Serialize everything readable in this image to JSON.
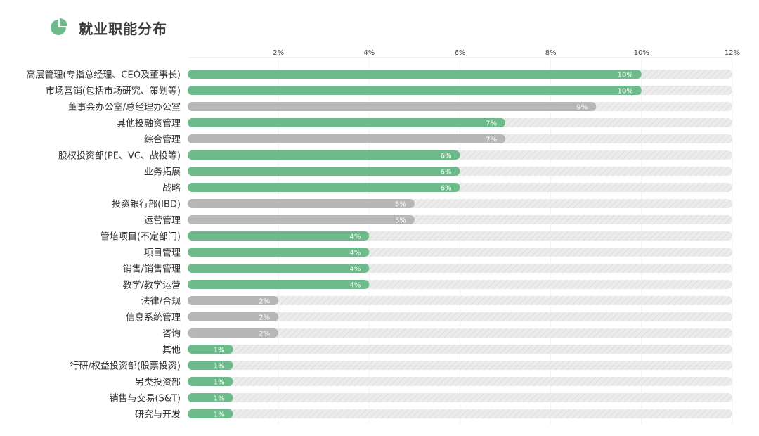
{
  "title": "就业职能分布",
  "icon": "pie-chart-icon",
  "colors": {
    "green": "#6dbb8a",
    "gray": "#b9b6b6",
    "track": "#ececec",
    "hatch": "#dddddd"
  },
  "chart_data": {
    "type": "bar",
    "orientation": "horizontal",
    "title": "",
    "xlabel": "",
    "ylabel": "",
    "xlim": [
      0,
      12
    ],
    "ticks": [
      "2%",
      "4%",
      "6%",
      "8%",
      "10%",
      "12%"
    ],
    "tick_values": [
      2,
      4,
      6,
      8,
      10,
      12
    ],
    "categories": [
      "高层管理(专指总经理、CEO及董事长)",
      "市场营销(包括市场研究、策划等)",
      "董事会办公室/总经理办公室",
      "其他投融资管理",
      "综合管理",
      "股权投资部(PE、VC、战投等)",
      "业务拓展",
      "战略",
      "投资银行部(IBD)",
      "运营管理",
      "管培项目(不定部门)",
      "项目管理",
      "销售/销售管理",
      "教学/教学运营",
      "法律/合规",
      "信息系统管理",
      "咨询",
      "其他",
      "行研/权益投资部(股票投资)",
      "另类投资部",
      "销售与交易(S&T)",
      "研究与开发"
    ],
    "values": [
      10,
      10,
      9,
      7,
      7,
      6,
      6,
      6,
      5,
      5,
      4,
      4,
      4,
      4,
      2,
      2,
      2,
      1,
      1,
      1,
      1,
      1
    ],
    "value_labels": [
      "10%",
      "10%",
      "9%",
      "7%",
      "7%",
      "6%",
      "6%",
      "6%",
      "5%",
      "5%",
      "4%",
      "4%",
      "4%",
      "4%",
      "2%",
      "2%",
      "2%",
      "1%",
      "1%",
      "1%",
      "1%",
      "1%"
    ],
    "bar_color": [
      "green",
      "green",
      "gray",
      "green",
      "gray",
      "green",
      "green",
      "green",
      "gray",
      "gray",
      "green",
      "green",
      "green",
      "green",
      "gray",
      "gray",
      "gray",
      "green",
      "green",
      "green",
      "green",
      "green"
    ],
    "grid": true
  }
}
